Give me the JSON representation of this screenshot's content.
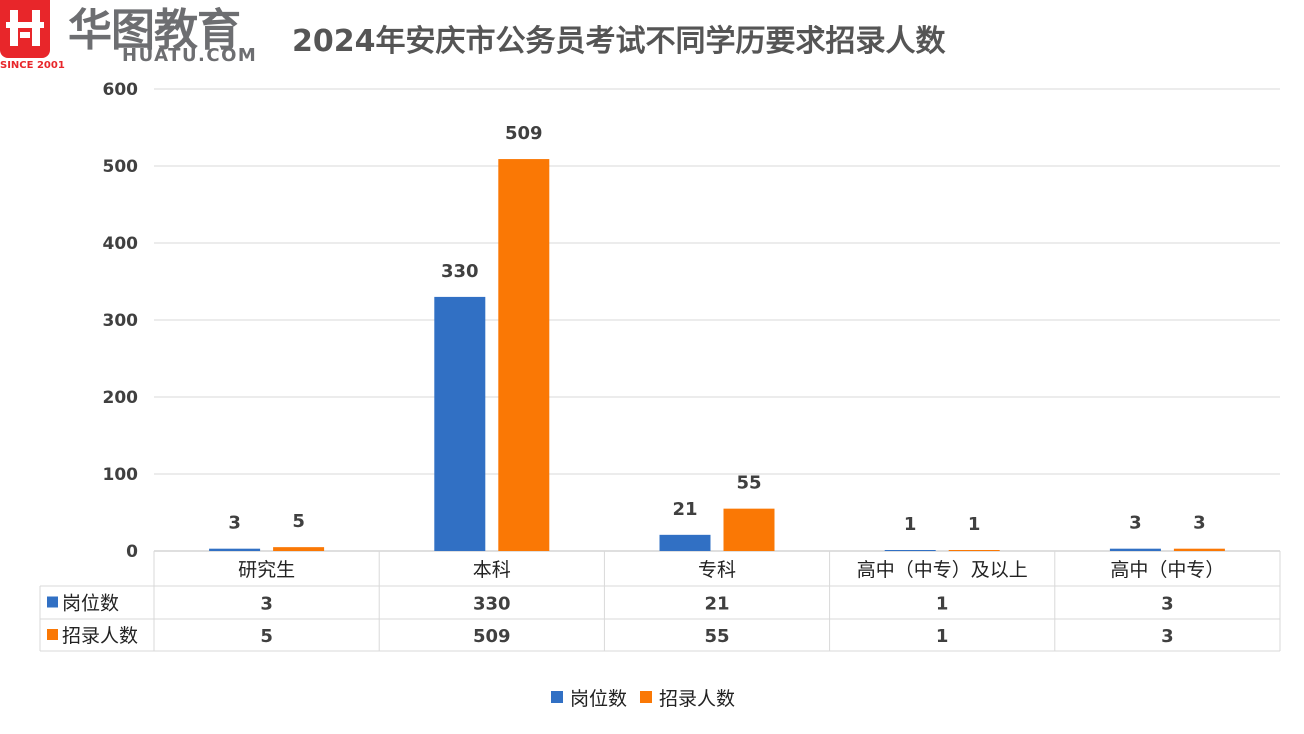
{
  "logo": {
    "name": "华图教育",
    "latin": "HUATU.COM",
    "since": "SINCE 2001"
  },
  "chart_data": {
    "type": "bar",
    "title": "2024年安庆市公务员考试不同学历要求招录人数",
    "categories": [
      "研究生",
      "本科",
      "专科",
      "高中（中专）及以上",
      "高中（中专）"
    ],
    "series": [
      {
        "name": "岗位数",
        "color": "#3170c4",
        "values": [
          3,
          330,
          21,
          1,
          3
        ]
      },
      {
        "name": "招录人数",
        "color": "#fa7805",
        "values": [
          5,
          509,
          55,
          1,
          3
        ]
      }
    ],
    "ylim": [
      0,
      600
    ],
    "yticks": [
      0,
      100,
      200,
      300,
      400,
      500,
      600
    ],
    "grid": true,
    "data_table": true,
    "legend_position": "bottom"
  }
}
